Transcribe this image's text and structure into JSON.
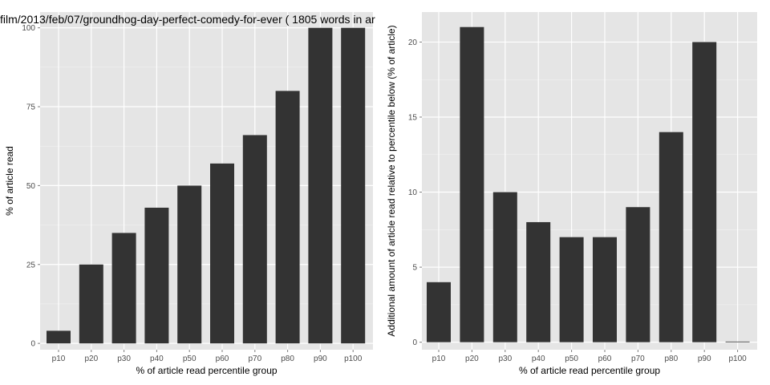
{
  "title": "film/2013/feb/07/groundhog-day-perfect-comedy-for-ever ( 1805 words in ar",
  "colors": {
    "panel_bg": "#e5e5e5",
    "grid_major": "#ffffff",
    "grid_minor": "#f2f2f2",
    "bar": "#333333"
  },
  "chart_data": [
    {
      "type": "bar",
      "title": "film/2013/feb/07/groundhog-day-perfect-comedy-for-ever ( 1805 words in ar",
      "xlabel": "% of article read percentile group",
      "ylabel": "% of article read",
      "categories": [
        "p10",
        "p20",
        "p30",
        "p40",
        "p50",
        "p60",
        "p70",
        "p80",
        "p90",
        "p100"
      ],
      "values": [
        4,
        25,
        35,
        43,
        50,
        57,
        66,
        80,
        100,
        100
      ],
      "ylim": [
        -2,
        105
      ],
      "yticks": [
        0,
        25,
        50,
        75,
        100
      ],
      "grid": true
    },
    {
      "type": "bar",
      "xlabel": "% of article read percentile group",
      "ylabel": "Additional amount of article read relative to percentile below (% of article)",
      "categories": [
        "p10",
        "p20",
        "p30",
        "p40",
        "p50",
        "p60",
        "p70",
        "p80",
        "p90",
        "p100"
      ],
      "values": [
        4,
        21,
        10,
        8,
        7,
        7,
        9,
        14,
        20,
        0
      ],
      "ylim": [
        -0.5,
        22
      ],
      "yticks": [
        0,
        5,
        10,
        15,
        20
      ],
      "grid": true
    }
  ]
}
